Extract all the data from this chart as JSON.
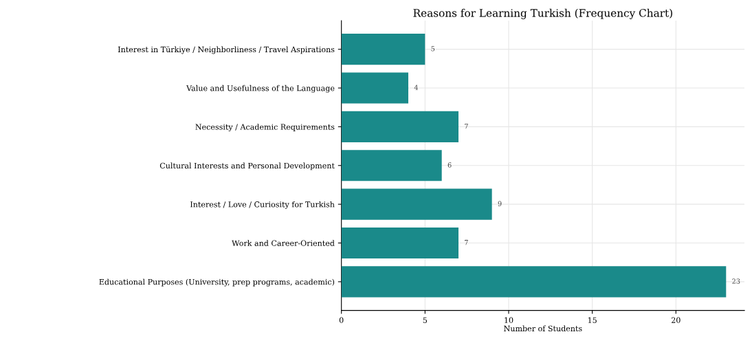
{
  "chart_data": {
    "type": "bar",
    "orientation": "horizontal",
    "title": "Reasons for Learning Turkish (Frequency Chart)",
    "xlabel": "Number of Students",
    "categories": [
      "Interest in Türkiye / Neighborliness / Travel Aspirations",
      "Value and Usefulness of the Language",
      "Necessity / Academic Requirements",
      "Cultural Interests and Personal Development",
      "Interest / Love / Curiosity for Turkish",
      "Work and Career-Oriented",
      "Educational Purposes (University, prep programs, academic)"
    ],
    "values": [
      5,
      4,
      7,
      6,
      9,
      7,
      23
    ],
    "color": "#1a8a8a",
    "data_labels": true,
    "grid": true,
    "xlim": [
      0,
      24.1
    ],
    "xticks": [
      0,
      5,
      10,
      15,
      20
    ]
  }
}
